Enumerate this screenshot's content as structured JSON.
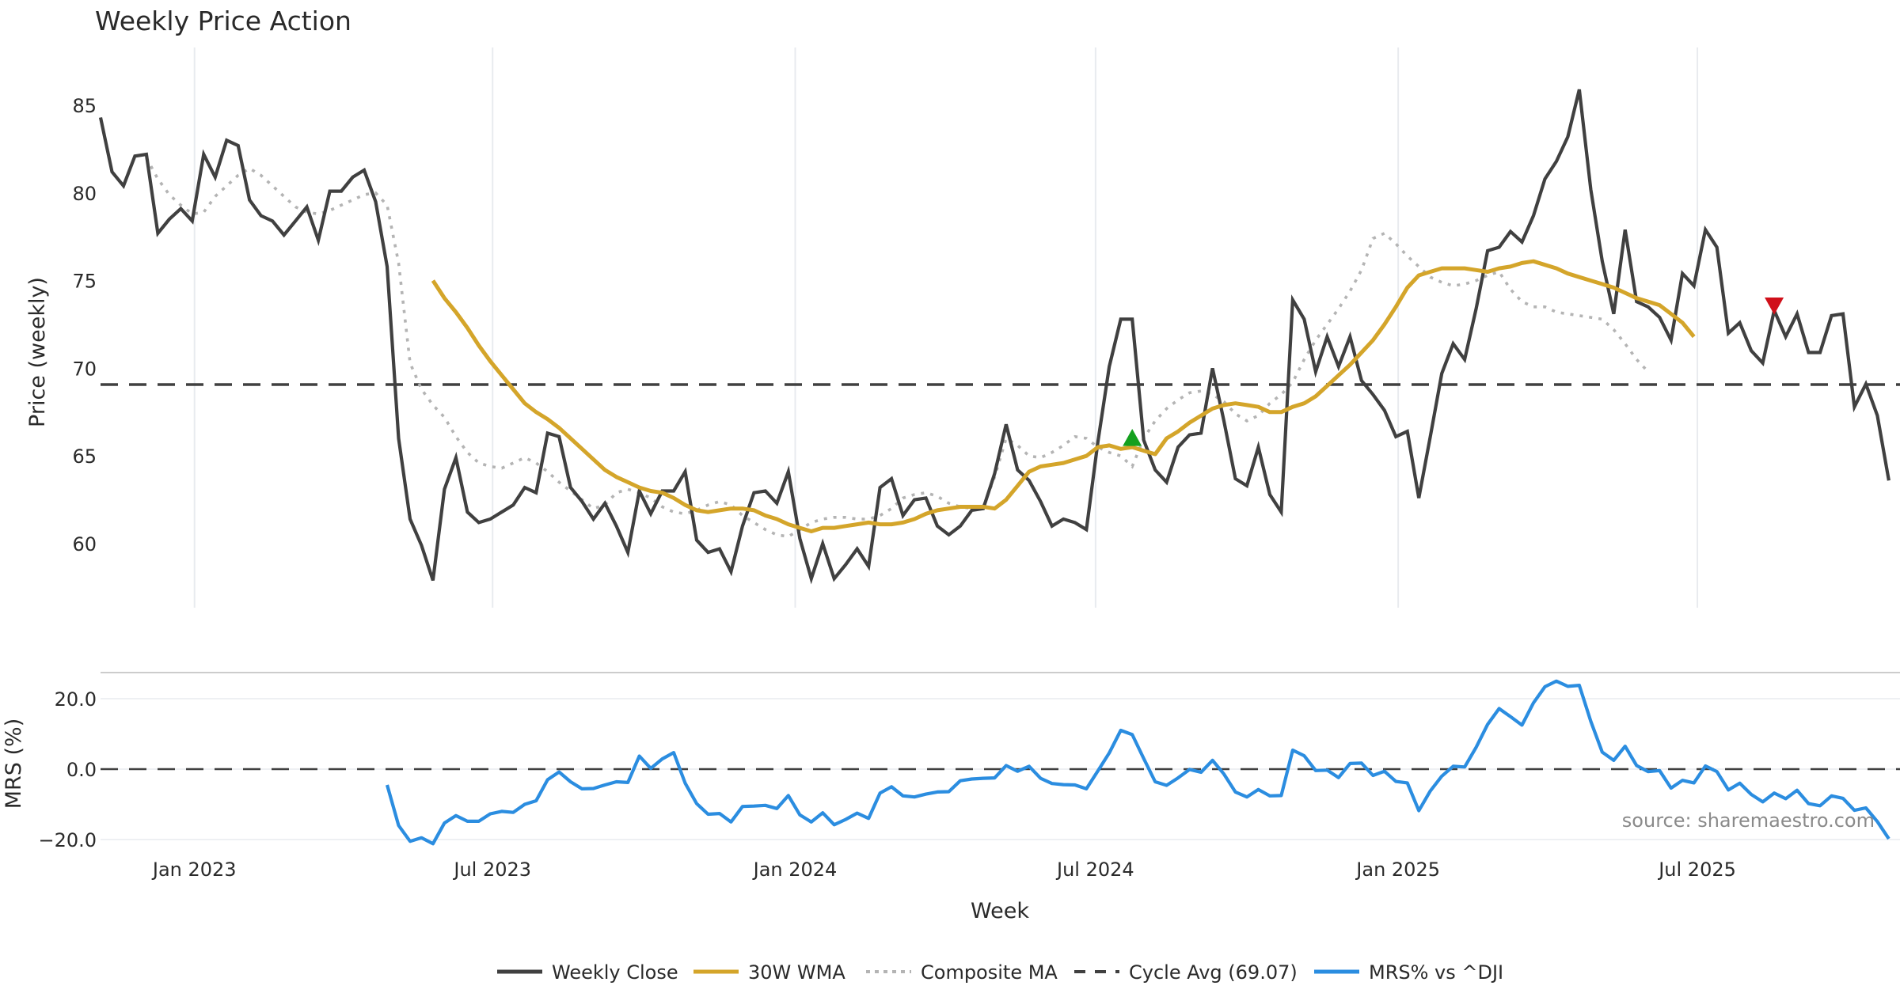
{
  "chart_data": {
    "type": "line",
    "title": "Weekly Price Action",
    "xlabel": "Week",
    "source_note": "source: sharemaestro.com",
    "x_ticks": [
      "Jan 2023",
      "Jul 2023",
      "Jan 2024",
      "Jul 2024",
      "Jan 2025",
      "Jul 2025"
    ],
    "x_tick_weeks": [
      8.2,
      34.2,
      60.6,
      86.8,
      113.2,
      139.3
    ],
    "price_panel": {
      "ylabel": "Price (weekly)",
      "ylim": [
        56.0,
        87.3
      ],
      "y_ticks": [
        60,
        65,
        70,
        75,
        80,
        85
      ],
      "grid": "x",
      "cycle_avg": 69.07
    },
    "mrs_panel": {
      "ylabel": "MRS (%)",
      "ylim": [
        -22.5,
        28.0
      ],
      "y_ticks": [
        20.0,
        0.0,
        -20.0
      ],
      "y_tick_labels": [
        "20.0",
        "0.0",
        "−20.0"
      ],
      "zero_line": 0.0
    },
    "series": [
      {
        "name": "Weekly Close",
        "color": "#404040",
        "style": "solid",
        "start_week": 0,
        "values": [
          84.3,
          81.2,
          80.4,
          82.1,
          82.2,
          77.7,
          78.5,
          79.1,
          78.4,
          82.2,
          80.9,
          83.0,
          82.7,
          79.6,
          78.7,
          78.4,
          77.6,
          78.4,
          79.2,
          77.3,
          80.1,
          80.1,
          80.9,
          81.3,
          79.5,
          75.8,
          66.0,
          61.4,
          59.9,
          57.9,
          63.1,
          64.9,
          61.8,
          61.2,
          61.4,
          61.8,
          62.2,
          63.2,
          62.9,
          66.3,
          66.1,
          63.2,
          62.4,
          61.4,
          62.3,
          61.0,
          59.5,
          63.0,
          61.7,
          63.0,
          63.0,
          64.1,
          60.2,
          59.5,
          59.7,
          58.4,
          61.0,
          62.9,
          63.0,
          62.3,
          64.1,
          60.3,
          58.0,
          60.0,
          58.0,
          58.8,
          59.7,
          58.7,
          63.2,
          63.7,
          61.6,
          62.5,
          62.6,
          61.0,
          60.5,
          61.0,
          61.9,
          62.0,
          64.0,
          66.8,
          64.2,
          63.6,
          62.4,
          61.0,
          61.4,
          61.2,
          60.8,
          65.8,
          70.1,
          72.8,
          72.8,
          65.9,
          64.2,
          63.5,
          65.5,
          66.2,
          66.3,
          70.0,
          67.0,
          63.7,
          63.3,
          65.5,
          62.8,
          61.8,
          73.9,
          72.8,
          69.8,
          71.8,
          70.1,
          71.8,
          69.3,
          68.5,
          67.6,
          66.1,
          66.4,
          62.6,
          66.1,
          69.7,
          71.4,
          70.5,
          73.4,
          76.7,
          76.9,
          77.8,
          77.2,
          78.7,
          80.8,
          81.8,
          83.2,
          85.9,
          80.2,
          76.1,
          73.1,
          77.9,
          73.8,
          73.5,
          72.9,
          71.6,
          75.4,
          74.7,
          77.9,
          76.9,
          72.0,
          72.6,
          71.0,
          70.3,
          73.3,
          71.8,
          73.1,
          70.9,
          70.9,
          73.0,
          73.1,
          67.8,
          69.1,
          67.3,
          63.6
        ]
      },
      {
        "name": "30W WMA",
        "color": "#d4a52a",
        "style": "solid",
        "start_week": 29,
        "values": [
          75.0,
          74.0,
          73.2,
          72.3,
          71.3,
          70.4,
          69.6,
          68.8,
          68.0,
          67.5,
          67.1,
          66.6,
          66.0,
          65.4,
          64.8,
          64.2,
          63.8,
          63.5,
          63.2,
          63.0,
          62.9,
          62.6,
          62.2,
          61.9,
          61.8,
          61.9,
          62.0,
          62.0,
          61.9,
          61.6,
          61.4,
          61.1,
          60.9,
          60.7,
          60.9,
          60.9,
          61.0,
          61.1,
          61.2,
          61.1,
          61.1,
          61.2,
          61.4,
          61.7,
          61.9,
          62.0,
          62.1,
          62.1,
          62.1,
          62.0,
          62.5,
          63.3,
          64.1,
          64.4,
          64.5,
          64.6,
          64.8,
          65.0,
          65.5,
          65.6,
          65.4,
          65.5,
          65.3,
          65.1,
          66.0,
          66.4,
          66.9,
          67.3,
          67.7,
          67.9,
          68.0,
          67.9,
          67.8,
          67.5,
          67.5,
          67.8,
          68.0,
          68.4,
          69.0,
          69.6,
          70.2,
          70.9,
          71.6,
          72.5,
          73.5,
          74.6,
          75.3,
          75.5,
          75.7,
          75.7,
          75.7,
          75.6,
          75.5,
          75.7,
          75.8,
          76.0,
          76.1,
          75.9,
          75.7,
          75.4,
          75.2,
          75.0,
          74.8,
          74.6,
          74.3,
          74.0,
          73.8,
          73.6,
          73.1,
          72.6,
          71.8
        ]
      },
      {
        "name": "Composite MA",
        "color": "#b4b4b4",
        "style": "dotted",
        "start_week": 4,
        "values": [
          82.0,
          80.8,
          79.9,
          79.3,
          78.8,
          78.9,
          79.8,
          80.4,
          81.0,
          81.4,
          81.0,
          80.4,
          79.8,
          79.2,
          78.9,
          78.8,
          79.0,
          79.3,
          79.6,
          79.9,
          80.0,
          79.3,
          76.0,
          70.3,
          68.8,
          67.9,
          67.2,
          66.1,
          65.2,
          64.6,
          64.4,
          64.3,
          64.6,
          64.9,
          64.6,
          64.1,
          63.5,
          63.0,
          62.5,
          62.0,
          62.2,
          62.9,
          63.1,
          62.9,
          62.6,
          62.1,
          61.8,
          61.7,
          61.9,
          62.2,
          62.4,
          62.2,
          61.6,
          61.2,
          60.8,
          60.5,
          60.4,
          60.8,
          61.2,
          61.4,
          61.5,
          61.5,
          61.4,
          61.4,
          61.6,
          62.0,
          62.6,
          62.8,
          62.9,
          62.7,
          62.3,
          62.1,
          62.0,
          62.1,
          63.8,
          66.0,
          65.6,
          65.0,
          64.9,
          65.2,
          65.6,
          66.1,
          66.0,
          65.5,
          65.2,
          65.0,
          64.4,
          66.0,
          67.0,
          67.7,
          68.2,
          68.6,
          68.7,
          68.5,
          68.1,
          67.4,
          67.0,
          67.3,
          68.0,
          68.5,
          69.2,
          70.5,
          71.6,
          72.5,
          73.4,
          74.4,
          75.6,
          77.4,
          77.7,
          77.1,
          76.4,
          75.8,
          75.2,
          74.9,
          74.7,
          74.8,
          75.0,
          75.3,
          75.5,
          74.5,
          73.8,
          73.5,
          73.5,
          73.2,
          73.1,
          73.0,
          72.9,
          72.8,
          72.2,
          71.4,
          70.5,
          69.8
        ]
      },
      {
        "name": "Cycle Avg (69.07)",
        "color": "#404040",
        "style": "dashed",
        "value": 69.07
      },
      {
        "name": "MRS% vs ^DJI",
        "color": "#2b8de0",
        "style": "solid",
        "panel": "mrs",
        "start_week": 25,
        "values": [
          -4.5,
          -16.0,
          -20.5,
          -19.5,
          -21.2,
          -15.3,
          -13.2,
          -14.8,
          -14.8,
          -12.7,
          -12.0,
          -12.3,
          -10.0,
          -9.0,
          -3.0,
          -0.8,
          -3.6,
          -5.6,
          -5.5,
          -4.5,
          -3.6,
          -3.8,
          3.7,
          0.2,
          2.9,
          4.7,
          -4.0,
          -9.8,
          -12.8,
          -12.6,
          -15.0,
          -10.6,
          -10.5,
          -10.3,
          -11.2,
          -7.5,
          -13.0,
          -15.0,
          -12.4,
          -15.8,
          -14.3,
          -12.5,
          -14.0,
          -6.8,
          -5.0,
          -7.6,
          -7.9,
          -7.1,
          -6.5,
          -6.4,
          -3.3,
          -2.8,
          -2.6,
          -2.5,
          1.0,
          -0.6,
          0.8,
          -2.6,
          -4.1,
          -4.4,
          -4.5,
          -5.6,
          -0.5,
          4.6,
          11.0,
          9.8,
          3.0,
          -3.6,
          -4.6,
          -2.5,
          -0.1,
          -0.9,
          2.5,
          -1.4,
          -6.5,
          -7.9,
          -5.8,
          -7.6,
          -7.5,
          5.4,
          3.8,
          -0.4,
          -0.3,
          -2.4,
          1.6,
          1.7,
          -1.8,
          -0.6,
          -3.5,
          -3.9,
          -11.8,
          -6.2,
          -2.0,
          0.8,
          0.6,
          6.2,
          12.7,
          17.2,
          14.9,
          12.5,
          18.8,
          23.4,
          25.0,
          23.5,
          23.8,
          13.6,
          4.8,
          2.5,
          6.5,
          1.0,
          -0.7,
          -0.4,
          -5.4,
          -3.2,
          -3.9,
          0.9,
          -0.7,
          -5.9,
          -4.0,
          -7.2,
          -9.3,
          -6.8,
          -8.4,
          -6.0,
          -9.8,
          -10.4,
          -7.6,
          -8.3,
          -11.7,
          -11.0,
          -14.9,
          -19.8
        ]
      }
    ],
    "markers": [
      {
        "type": "buy",
        "shape": "triangle-up",
        "color": "#14a01e",
        "week": 90,
        "value": 66.0
      },
      {
        "type": "sell",
        "shape": "triangle-down",
        "color": "#d0101a",
        "week": 146,
        "value": 73.6
      }
    ],
    "legend": {
      "placement": "bottom-center",
      "entries": [
        "Weekly Close",
        "30W WMA",
        "Composite MA",
        "Cycle Avg (69.07)",
        "MRS% vs ^DJI"
      ]
    }
  }
}
